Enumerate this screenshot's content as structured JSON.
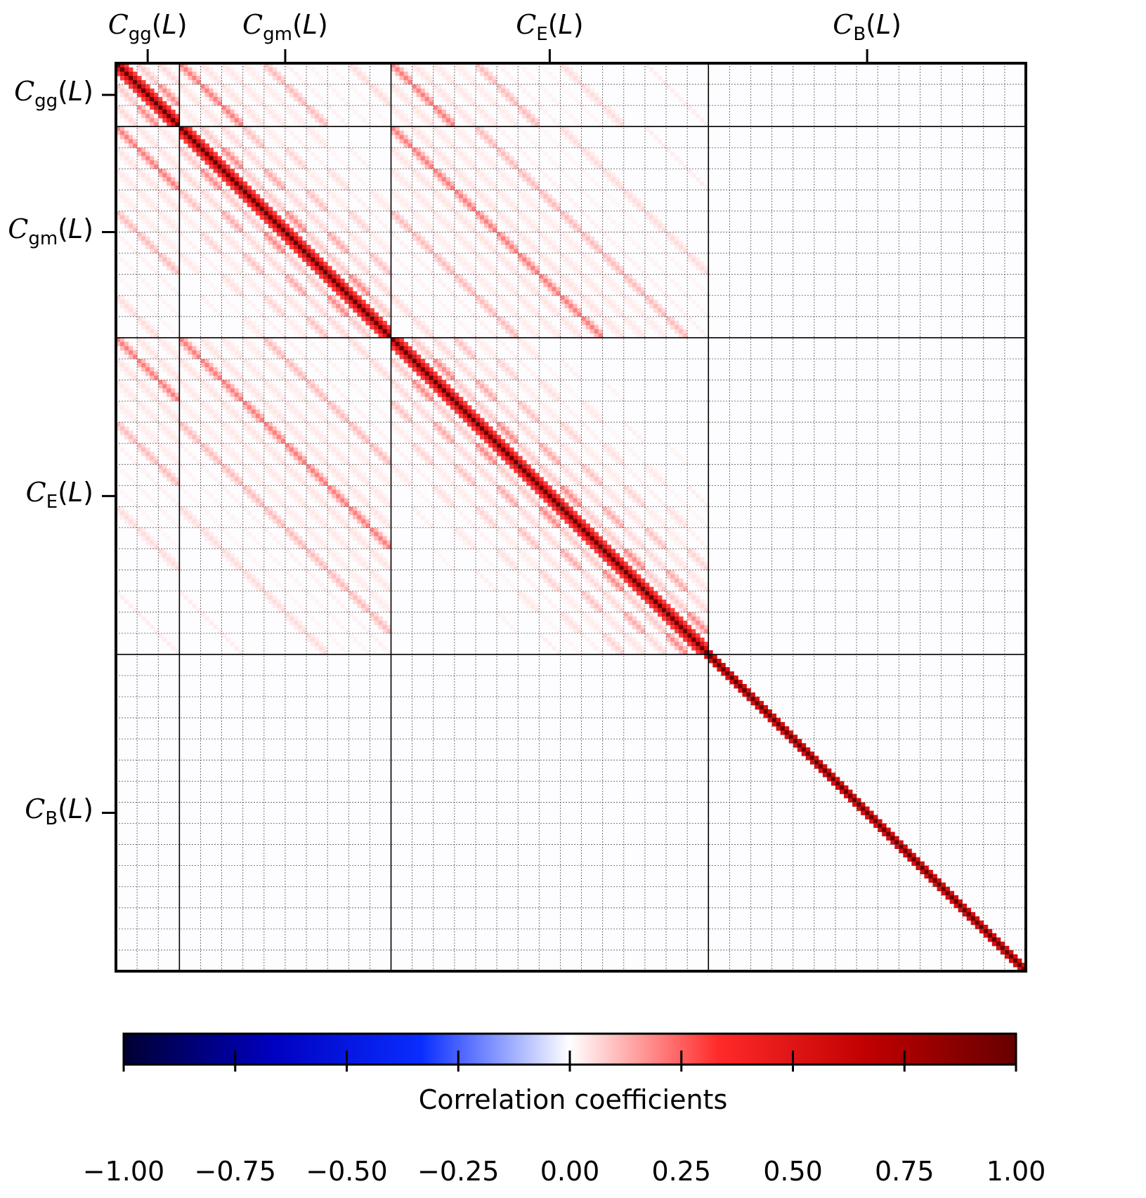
{
  "chart_data": {
    "type": "heatmap",
    "title": "",
    "colorbar_label": "Correlation coefficients",
    "colorbar_range": [
      -1.0,
      1.0
    ],
    "colorbar_ticks": [
      "−1.00",
      "−0.75",
      "−0.50",
      "−0.25",
      "0.00",
      "0.25",
      "0.50",
      "0.75",
      "1.00"
    ],
    "colormap": [
      "#000033",
      "#0000c0",
      "#0a2dff",
      "#ffffff",
      "#ff2a2a",
      "#c00000",
      "#660000"
    ],
    "blocks": [
      {
        "name": "gg",
        "label": "C",
        "sub": "gg",
        "bins": 3
      },
      {
        "name": "gm",
        "label": "C",
        "sub": "gm",
        "bins": 10
      },
      {
        "name": "E",
        "label": "C",
        "sub": "E",
        "bins": 15
      },
      {
        "name": "B",
        "label": "C",
        "sub": "B",
        "bins": 15
      }
    ],
    "arg_label": "L",
    "diagonal_value": 1.0,
    "offdiag_peak_value": 0.25
  }
}
